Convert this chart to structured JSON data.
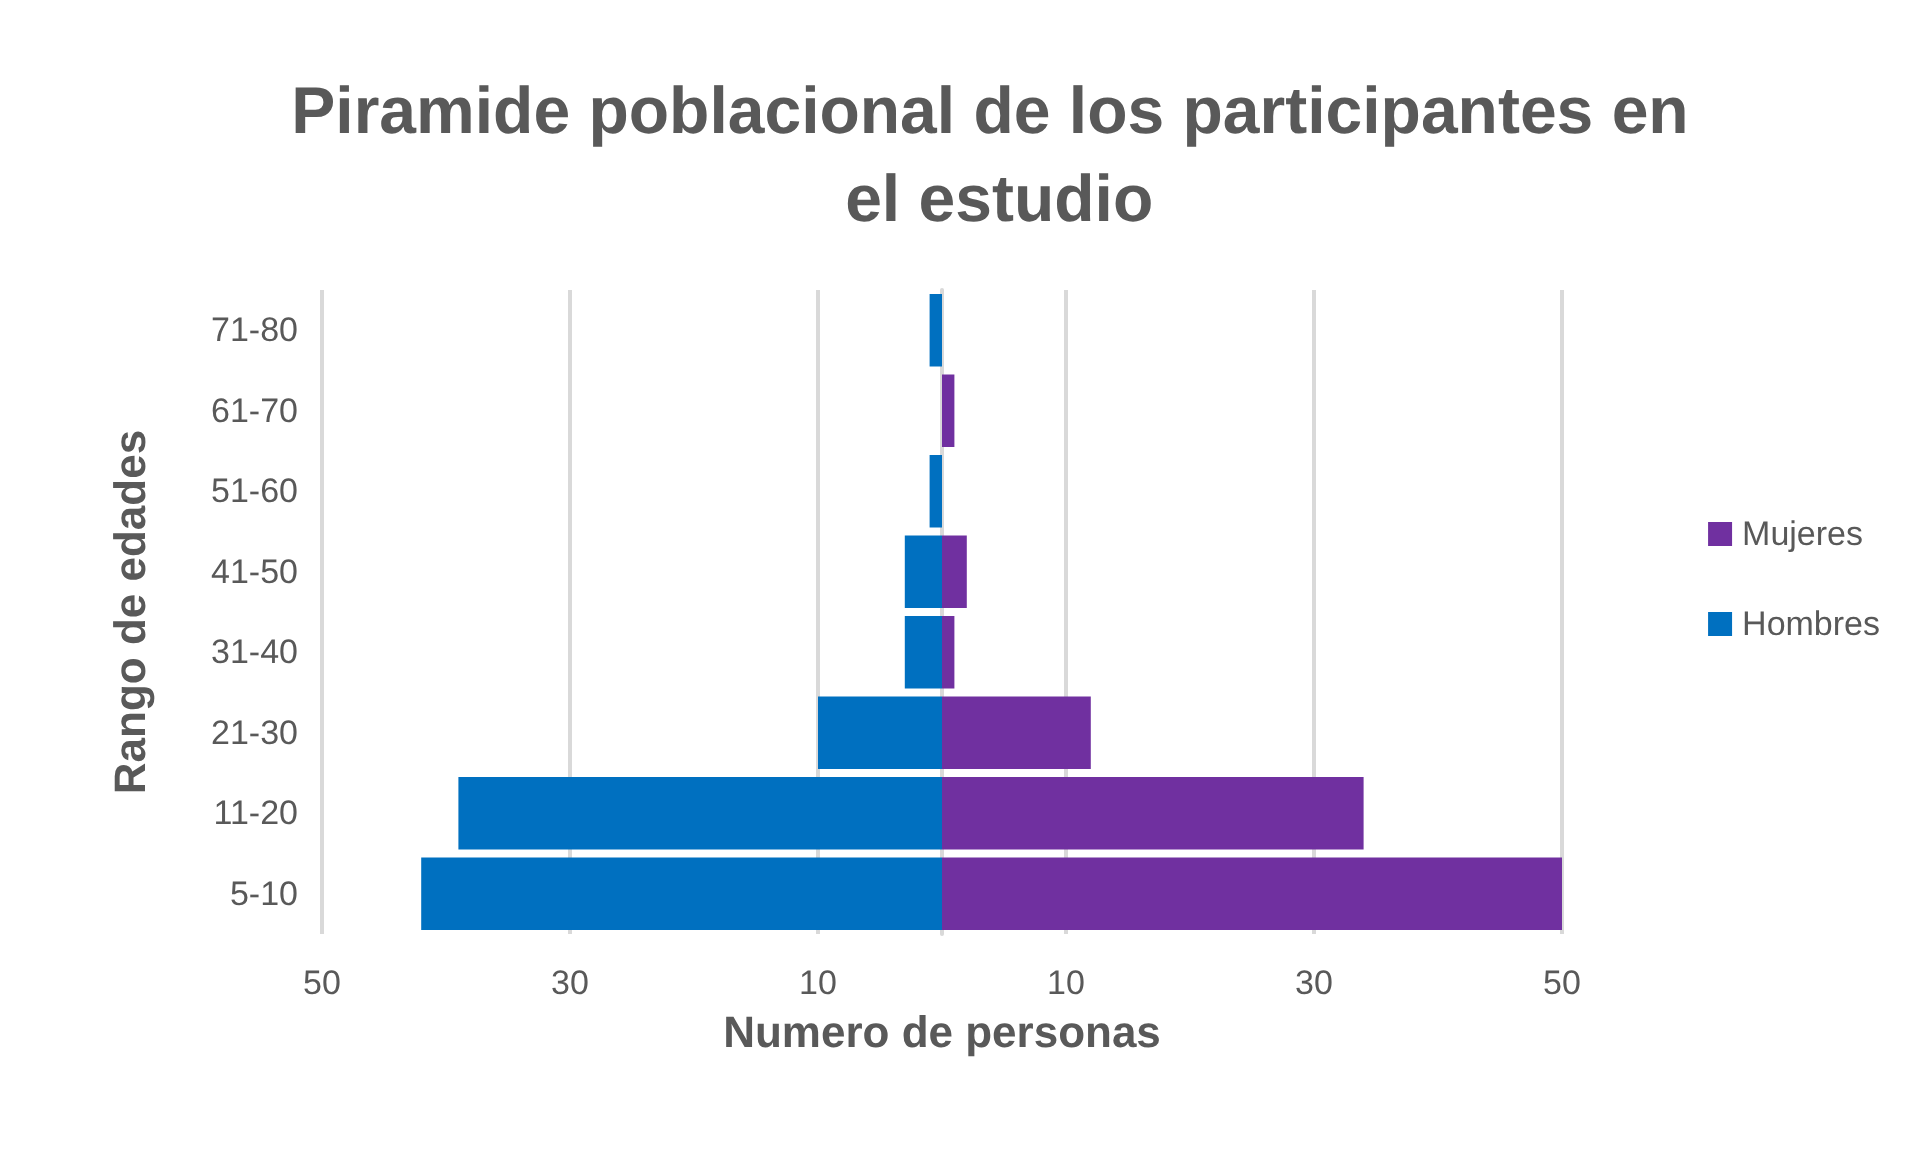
{
  "chart_data": {
    "type": "bar",
    "orientation": "horizontal",
    "title": "Piramide poblacional de los participantes en el estudio",
    "xlabel": "Numero de personas",
    "ylabel": "Rango de edades",
    "categories": [
      "71-80",
      "61-70",
      "51-60",
      "41-50",
      "31-40",
      "21-30",
      "11-20",
      "5-10"
    ],
    "series": [
      {
        "name": "Mujeres",
        "color": "#7030a0",
        "values": [
          0,
          1,
          0,
          2,
          1,
          12,
          34,
          50
        ]
      },
      {
        "name": "Hombres",
        "color": "#0070c0",
        "values": [
          -1,
          0,
          -1,
          -3,
          -3,
          -10,
          -39,
          -42
        ]
      }
    ],
    "xlim": [
      -50,
      50
    ],
    "xticks": [
      {
        "value": -50,
        "label": "50"
      },
      {
        "value": -30,
        "label": "30"
      },
      {
        "value": -10,
        "label": "10"
      },
      10,
      30,
      50
    ],
    "stacked": true,
    "grid": "x",
    "legend": "right"
  }
}
